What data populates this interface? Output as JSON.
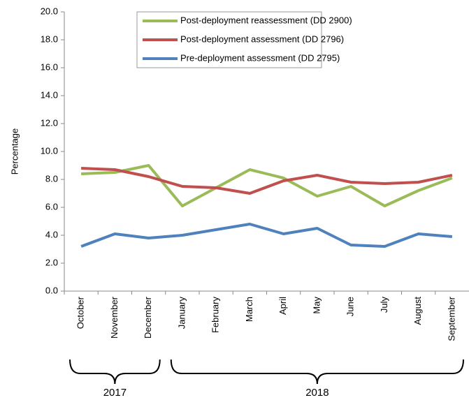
{
  "chart_data": {
    "type": "line",
    "y_label": "Percentage",
    "categories": [
      "October",
      "November",
      "December",
      "January",
      "February",
      "March",
      "April",
      "May",
      "June",
      "July",
      "August",
      "September"
    ],
    "groups": [
      {
        "label": "2017",
        "categories": [
          "October",
          "November",
          "December"
        ]
      },
      {
        "label": "2018",
        "categories": [
          "January",
          "February",
          "March",
          "April",
          "May",
          "June",
          "July",
          "August",
          "September"
        ]
      }
    ],
    "series": [
      {
        "name": "Post-deployment reassessment (DD 2900)",
        "color": "#9bbb59",
        "values": [
          8.4,
          8.5,
          9.0,
          6.1,
          7.4,
          8.7,
          8.1,
          6.8,
          7.5,
          6.1,
          7.2,
          8.1
        ]
      },
      {
        "name": "Post-deployment assessment (DD 2796)",
        "color": "#c0504d",
        "values": [
          8.8,
          8.7,
          8.2,
          7.5,
          7.4,
          7.0,
          7.9,
          8.3,
          7.8,
          7.7,
          7.8,
          8.3
        ]
      },
      {
        "name": "Pre-deployment assessment (DD 2795)",
        "color": "#4f81bd",
        "values": [
          3.2,
          4.1,
          3.8,
          4.0,
          4.4,
          4.8,
          4.1,
          4.5,
          3.3,
          3.2,
          4.1,
          3.9
        ]
      }
    ],
    "ylim": [
      0,
      20
    ],
    "yticks": [
      {
        "value": 0,
        "label": "0.0"
      },
      {
        "value": 2,
        "label": "2.0"
      },
      {
        "value": 4,
        "label": "4.0"
      },
      {
        "value": 6,
        "label": "6.0"
      },
      {
        "value": 8,
        "label": "8.0"
      },
      {
        "value": 10,
        "label": "10.0"
      },
      {
        "value": 12,
        "label": "12.0"
      },
      {
        "value": 14,
        "label": "14.0"
      },
      {
        "value": 16,
        "label": "16.0"
      },
      {
        "value": 18,
        "label": "18.0"
      },
      {
        "value": 20,
        "label": "20.0"
      }
    ],
    "legend": "top"
  }
}
